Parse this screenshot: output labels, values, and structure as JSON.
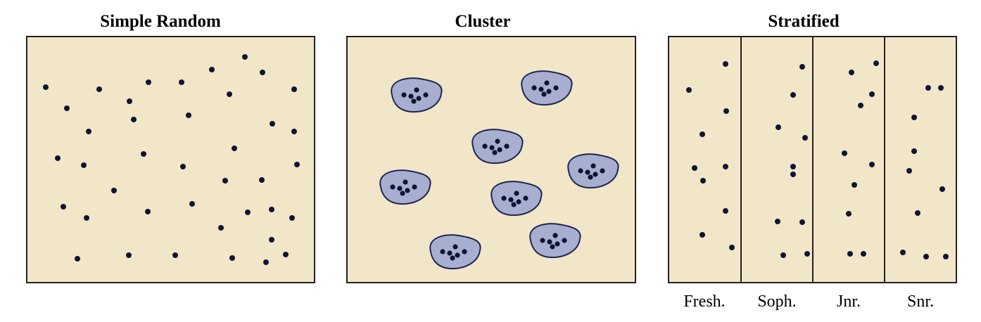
{
  "colors": {
    "panel_fill": "#f2e6c9",
    "border": "#222222",
    "dot": "#0f1433",
    "cluster_fill": "#a8aed0",
    "cluster_stroke": "#1f2550"
  },
  "panels": {
    "simple_random": {
      "title": "Simple Random"
    },
    "cluster": {
      "title": "Cluster"
    },
    "stratified": {
      "title": "Stratified",
      "strata": [
        "Fresh.",
        "Soph.",
        "Jnr.",
        "Snr."
      ]
    }
  }
}
